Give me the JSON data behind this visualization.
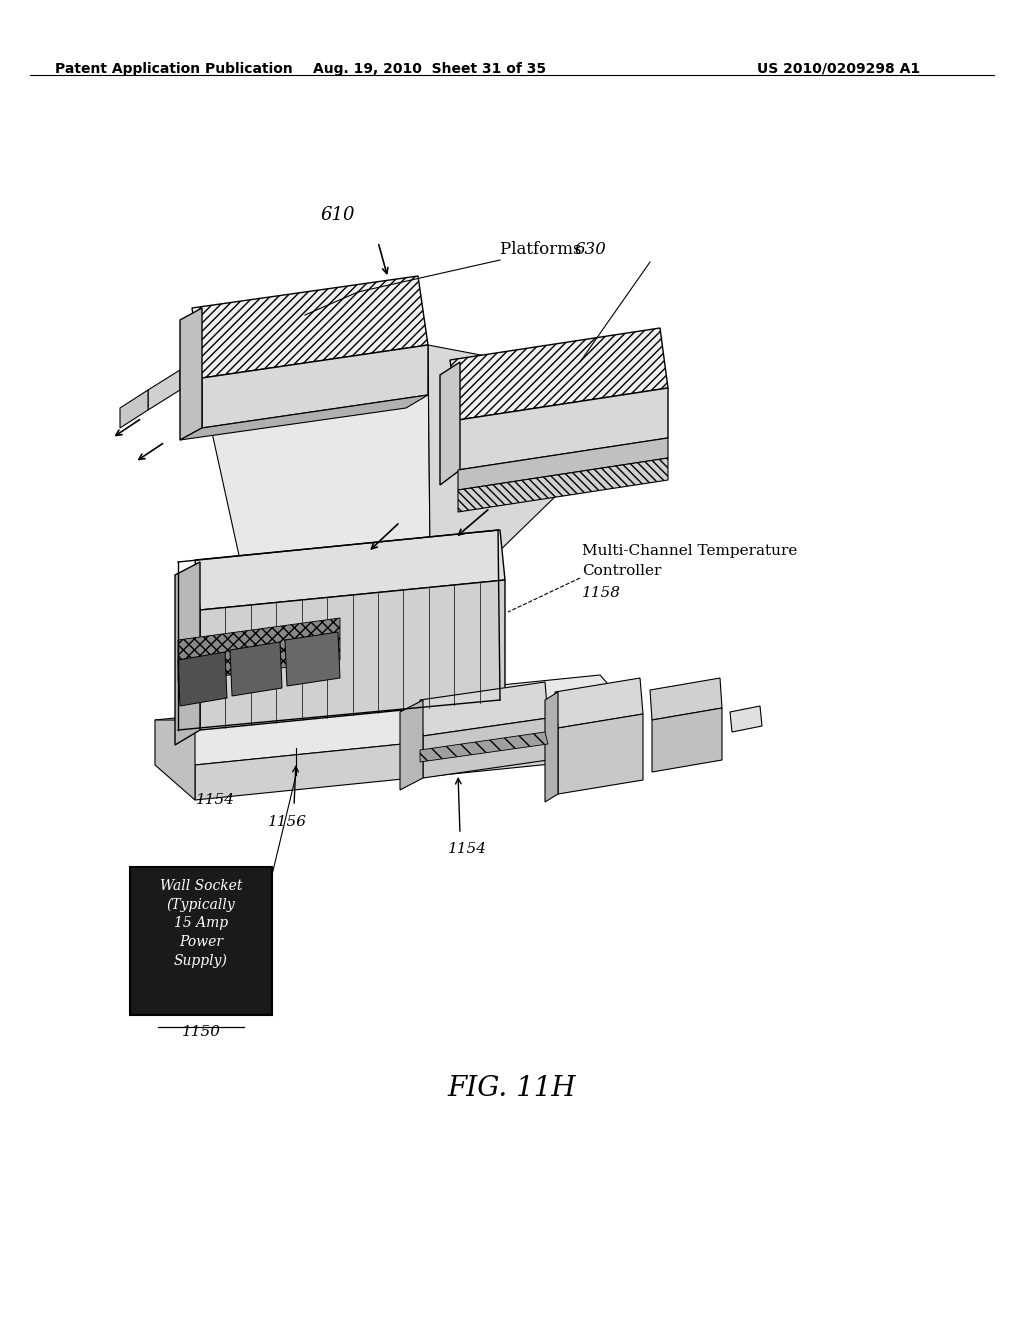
{
  "bg_color": "#ffffff",
  "header_left": "Patent Application Publication",
  "header_mid": "Aug. 19, 2010  Sheet 31 of 35",
  "header_right": "US 2010/0209298 A1",
  "fig_label": "FIG. 11H",
  "label_610": "610",
  "label_platforms": "Platforms ",
  "label_630": "630",
  "label_1158_title": "Multi-Channel Temperature",
  "label_1158_sub": "Controller",
  "label_1158_num": "1158",
  "label_1154a": "1154",
  "label_1154b": "1154",
  "label_1156": "1156",
  "label_1150_text": "Wall Socket\n(Typically\n15 Amp\nPower\nSupply)",
  "label_1150_num": "1150",
  "font_header": 10,
  "font_labels": 11,
  "font_fig_label": 20
}
